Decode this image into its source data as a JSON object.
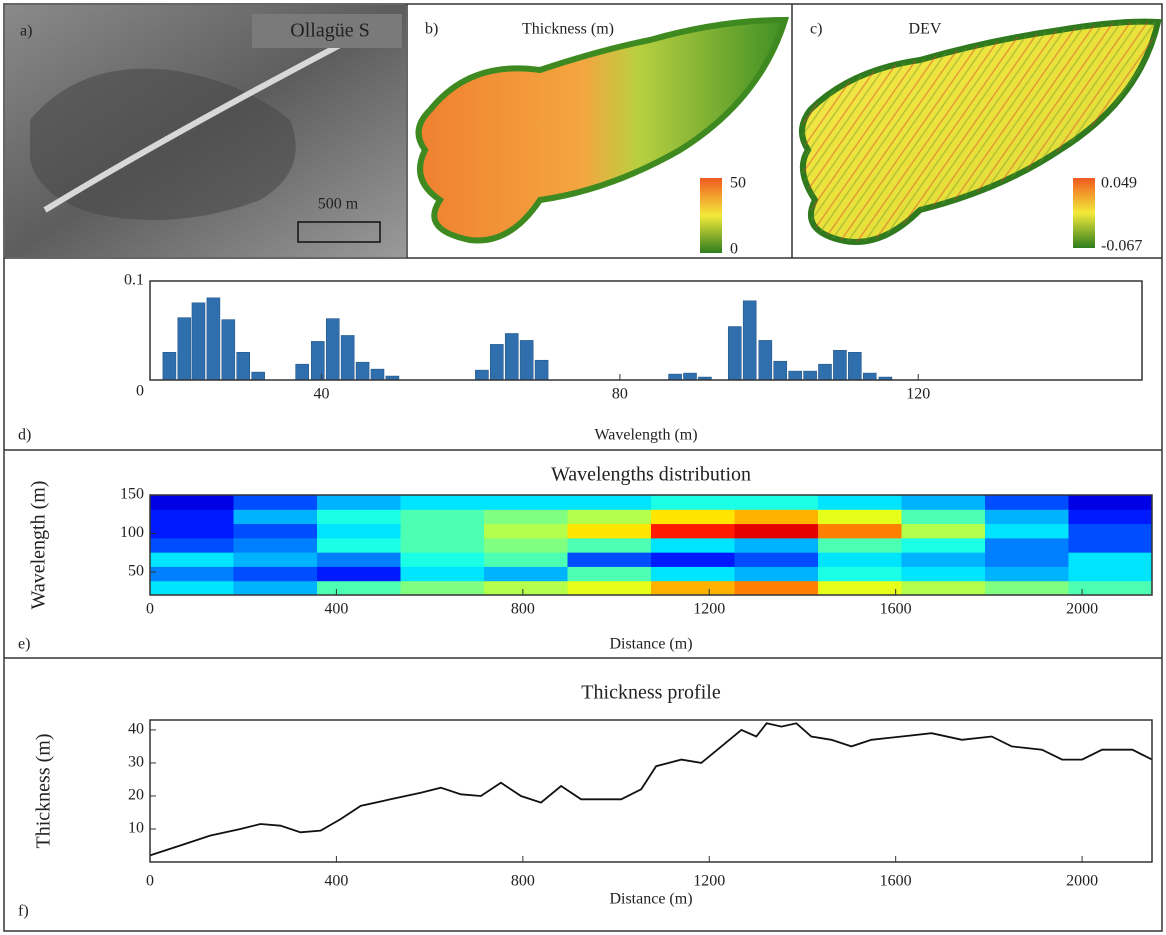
{
  "maps": [
    {
      "panel": "a)",
      "title": "Ollagüe S",
      "scale_bar": "500 m"
    },
    {
      "panel": "b)",
      "title": "Thickness (m)",
      "colorbar_ticks": [
        0,
        50
      ]
    },
    {
      "panel": "c)",
      "title": "DEV",
      "colorbar_ticks": [
        -0.067,
        0.049
      ]
    }
  ],
  "chart_data": [
    {
      "type": "bar",
      "panel": "d)",
      "x_label": "Wavelength (m)",
      "color": "#2f6fae",
      "x": [
        19.6,
        21.6,
        23.5,
        25.5,
        27.5,
        29.5,
        31.5,
        37.4,
        39.5,
        41.5,
        43.5,
        45.5,
        47.5,
        49.5,
        61.5,
        63.5,
        65.5,
        67.5,
        69.5,
        87.4,
        89.4,
        91.4,
        95.4,
        97.4,
        99.5,
        101.5,
        103.5,
        105.5,
        107.5,
        109.5,
        111.5,
        113.5,
        115.6
      ],
      "values": [
        0.028,
        0.063,
        0.078,
        0.083,
        0.061,
        0.028,
        0.008,
        0.016,
        0.039,
        0.062,
        0.045,
        0.018,
        0.011,
        0.004,
        0.01,
        0.036,
        0.047,
        0.04,
        0.02,
        0.006,
        0.007,
        0.003,
        0.054,
        0.08,
        0.04,
        0.019,
        0.009,
        0.009,
        0.016,
        0.03,
        0.028,
        0.007,
        0.003
      ],
      "xlim": [
        17,
        150
      ],
      "xticks": [
        40,
        80,
        120
      ],
      "ylim": [
        0,
        0.1
      ],
      "yticks": [
        0,
        0.1
      ]
    },
    {
      "type": "heatmap",
      "panel": "e)",
      "title": "Wavelengths distribution",
      "x_label": "Distance (m)",
      "y_label": "Wavelength (m)",
      "xlim": [
        0,
        2150
      ],
      "xticks": [
        0,
        400,
        800,
        1200,
        1600,
        2000
      ],
      "ylim": [
        20,
        150
      ],
      "yticks": [
        50,
        100,
        150
      ],
      "z": [
        [
          0.35,
          0.3,
          0.45,
          0.5,
          0.55,
          0.6,
          0.7,
          0.75,
          0.6,
          0.55,
          0.5,
          0.45
        ],
        [
          0.25,
          0.2,
          0.15,
          0.35,
          0.3,
          0.45,
          0.35,
          0.3,
          0.4,
          0.35,
          0.3,
          0.35
        ],
        [
          0.35,
          0.3,
          0.25,
          0.4,
          0.45,
          0.2,
          0.15,
          0.2,
          0.35,
          0.3,
          0.25,
          0.35
        ],
        [
          0.2,
          0.25,
          0.4,
          0.45,
          0.5,
          0.45,
          0.35,
          0.3,
          0.45,
          0.4,
          0.25,
          0.2
        ],
        [
          0.15,
          0.2,
          0.35,
          0.45,
          0.55,
          0.65,
          0.85,
          0.9,
          0.75,
          0.55,
          0.35,
          0.2
        ],
        [
          0.15,
          0.3,
          0.4,
          0.45,
          0.5,
          0.55,
          0.65,
          0.7,
          0.6,
          0.45,
          0.3,
          0.15
        ],
        [
          0.1,
          0.2,
          0.3,
          0.35,
          0.35,
          0.35,
          0.4,
          0.4,
          0.35,
          0.3,
          0.2,
          0.1
        ]
      ]
    },
    {
      "type": "line",
      "panel": "f)",
      "title": "Thickness profile",
      "x_label": "Distance (m)",
      "y_label": "Thickness (m)",
      "color": "#111111",
      "x": [
        0,
        65,
        129,
        194,
        237,
        280,
        323,
        366,
        409,
        452,
        516,
        581,
        624,
        667,
        710,
        753,
        796,
        839,
        882,
        925,
        968,
        1011,
        1054,
        1086,
        1140,
        1183,
        1226,
        1269,
        1301,
        1323,
        1355,
        1387,
        1419,
        1462,
        1505,
        1548,
        1613,
        1677,
        1742,
        1806,
        1849,
        1914,
        1957,
        2000,
        2043,
        2108,
        2150
      ],
      "values": [
        2,
        5,
        8,
        10,
        11.5,
        11,
        9,
        9.5,
        13,
        17,
        19,
        21,
        22.5,
        20.5,
        20,
        24,
        20,
        18,
        23,
        19,
        19,
        19,
        22,
        29,
        31,
        30,
        35,
        40,
        38,
        42,
        41,
        42,
        38,
        37,
        35,
        37,
        38,
        39,
        37,
        38,
        35,
        34,
        31,
        31,
        34,
        34,
        31
      ],
      "xlim": [
        0,
        2150
      ],
      "xticks": [
        0,
        400,
        800,
        1200,
        1600,
        2000
      ],
      "ylim": [
        0,
        43
      ],
      "yticks": [
        10,
        20,
        30,
        40
      ]
    }
  ]
}
